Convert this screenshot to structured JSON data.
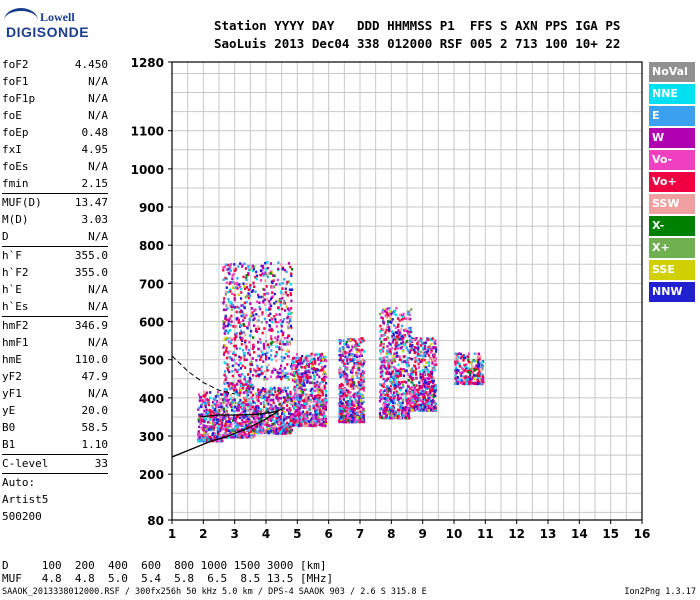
{
  "logo": {
    "brand": "Lowell",
    "product": "DIGISONDE"
  },
  "header": {
    "line1": "Station YYYY DAY   DDD HHMMSS P1  FFS S AXN PPS IGA PS",
    "line2": "SaoLuis 2013 Dec04 338 012000 RSF 005 2 713 100 10+ 22"
  },
  "params_group1": [
    {
      "k": "foF2",
      "v": "4.450"
    },
    {
      "k": "foF1",
      "v": "N/A"
    },
    {
      "k": "foF1p",
      "v": "N/A"
    },
    {
      "k": "foE",
      "v": "N/A"
    },
    {
      "k": "foEp",
      "v": "0.48"
    },
    {
      "k": "fxI",
      "v": "4.95"
    },
    {
      "k": "foEs",
      "v": "N/A"
    },
    {
      "k": "fmin",
      "v": "2.15"
    }
  ],
  "params_group2": [
    {
      "k": "MUF(D)",
      "v": "13.47"
    },
    {
      "k": "M(D)",
      "v": "3.03"
    },
    {
      "k": "D",
      "v": "N/A"
    }
  ],
  "params_group3": [
    {
      "k": "h`F",
      "v": "355.0"
    },
    {
      "k": "h`F2",
      "v": "355.0"
    },
    {
      "k": "h`E",
      "v": "N/A"
    },
    {
      "k": "h`Es",
      "v": "N/A"
    }
  ],
  "params_group4": [
    {
      "k": "hmF2",
      "v": "346.9"
    },
    {
      "k": "hmF1",
      "v": "N/A"
    },
    {
      "k": "hmE",
      "v": "110.0"
    },
    {
      "k": "yF2",
      "v": "47.9"
    },
    {
      "k": "yF1",
      "v": "N/A"
    },
    {
      "k": "yE",
      "v": "20.0"
    },
    {
      "k": "B0",
      "v": "58.5"
    },
    {
      "k": "B1",
      "v": "1.10"
    }
  ],
  "params_group5": [
    {
      "k": "C-level",
      "v": "33"
    }
  ],
  "auto": {
    "label": "Auto:",
    "artist": "Artist5",
    "code": "500200"
  },
  "legend": [
    {
      "label": "NoVal",
      "color": "#909090"
    },
    {
      "label": "NNE",
      "color": "#00e0f0"
    },
    {
      "label": "E",
      "color": "#3ca0f0"
    },
    {
      "label": "W",
      "color": "#b000b0"
    },
    {
      "label": "Vo-",
      "color": "#f040c0"
    },
    {
      "label": "Vo+",
      "color": "#f00040"
    },
    {
      "label": "SSW",
      "color": "#f0a0a0"
    },
    {
      "label": "X-",
      "color": "#008000"
    },
    {
      "label": "X+",
      "color": "#70b050"
    },
    {
      "label": "SSE",
      "color": "#d0d000"
    },
    {
      "label": "NNW",
      "color": "#2020d0"
    }
  ],
  "footer": {
    "line1": "D     100  200  400  600  800 1000 1500 3000 [km]",
    "line2": "MUF   4.8  4.8  5.0  5.4  5.8  6.5  8.5 13.5 [MHz]",
    "bottom": "SAAOK_2013338012000.RSF / 300fx256h 50 kHz 5.0 km / DPS-4 SAAOK 903 / 2.6 S 315.8 E",
    "version": "Ion2Png 1.3.17"
  },
  "chart_data": {
    "type": "scatter",
    "title": "",
    "xlabel": "",
    "ylabel": "",
    "xlim": [
      1,
      16
    ],
    "ylim": [
      80,
      1280
    ],
    "x_ticks": [
      1,
      2,
      3,
      4,
      5,
      6,
      7,
      8,
      9,
      10,
      11,
      12,
      13,
      14,
      15,
      16
    ],
    "y_ticks": [
      80,
      200,
      300,
      400,
      500,
      600,
      700,
      800,
      900,
      1000,
      1100,
      1280
    ],
    "grid": true,
    "clusters": [
      {
        "x": [
          1.8,
          2.6
        ],
        "y": [
          290,
          420
        ]
      },
      {
        "x": [
          2.6,
          3.6
        ],
        "y": [
          300,
          450
        ]
      },
      {
        "x": [
          3.6,
          4.8
        ],
        "y": [
          310,
          430
        ]
      },
      {
        "x": [
          2.6,
          4.8
        ],
        "y": [
          450,
          760
        ]
      },
      {
        "x": [
          4.8,
          5.9
        ],
        "y": [
          330,
          520
        ]
      },
      {
        "x": [
          6.3,
          7.1
        ],
        "y": [
          340,
          560
        ]
      },
      {
        "x": [
          7.6,
          8.6
        ],
        "y": [
          350,
          640
        ]
      },
      {
        "x": [
          8.6,
          9.4
        ],
        "y": [
          370,
          560
        ]
      },
      {
        "x": [
          10.0,
          10.9
        ],
        "y": [
          440,
          520
        ]
      }
    ],
    "profile_curve": {
      "x": [
        1.0,
        1.6,
        2.2,
        2.8,
        3.4,
        4.0,
        4.4
      ],
      "y": [
        245,
        265,
        285,
        300,
        320,
        345,
        365
      ]
    },
    "f2_trace": {
      "x": [
        1.9,
        2.5,
        3.1,
        3.7,
        4.2,
        4.5
      ],
      "y": [
        350,
        355,
        355,
        357,
        362,
        370
      ]
    },
    "extrapolation": {
      "x": [
        1.0,
        1.5,
        2.0,
        2.5,
        3.0
      ],
      "y": [
        510,
        470,
        440,
        420,
        410
      ]
    }
  }
}
